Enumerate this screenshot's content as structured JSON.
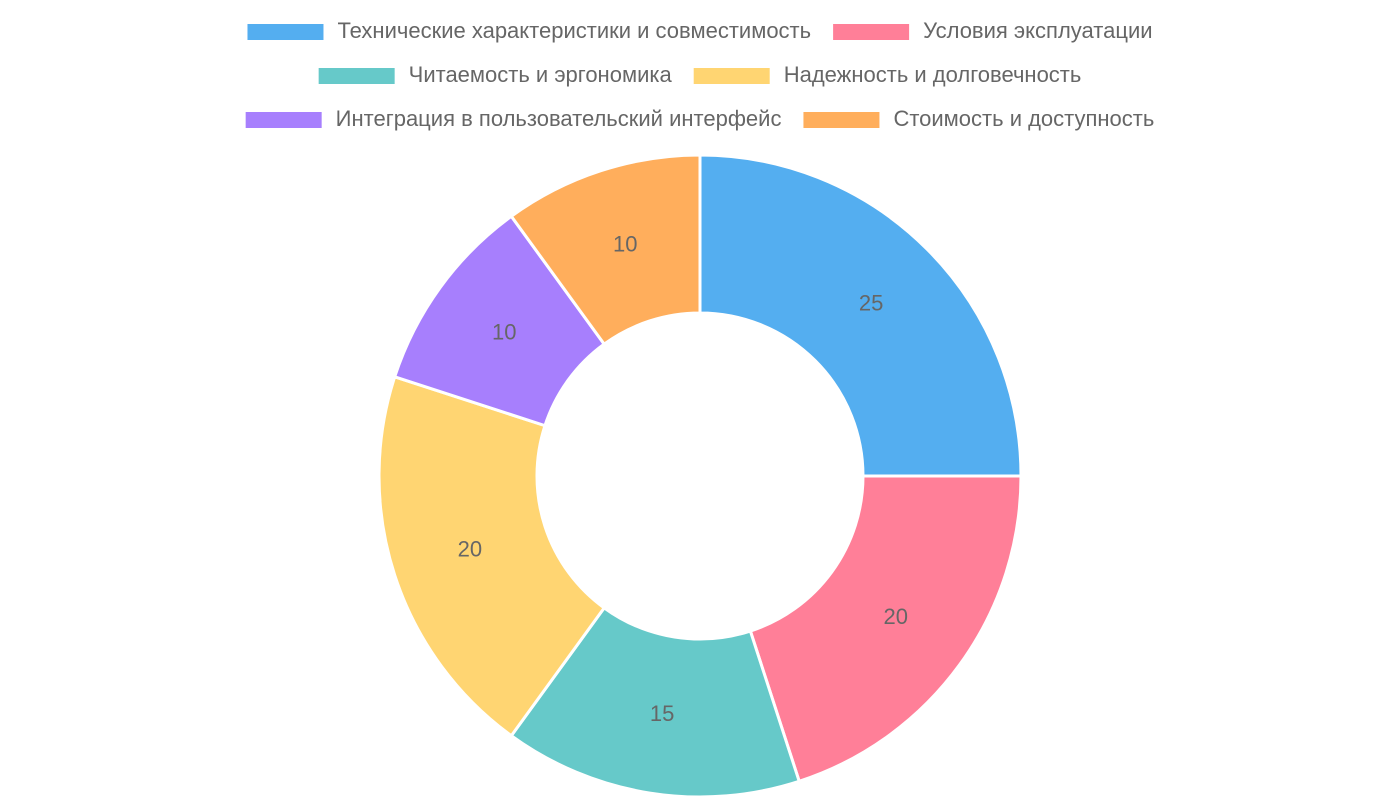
{
  "chart_data": {
    "type": "doughnut",
    "categories": [
      "Технические характеристики и совместимость",
      "Условия эксплуатации",
      "Читаемость и эргономика",
      "Надежность и долговечность",
      "Интеграция в пользовательский интерфейс",
      "Стоимость и доступность"
    ],
    "values": [
      25,
      20,
      15,
      20,
      10,
      10
    ],
    "colors": [
      "#54aef0",
      "#ff7f98",
      "#66c9c9",
      "#ffd572",
      "#a77ffd",
      "#ffae5c"
    ],
    "legend": "top"
  }
}
